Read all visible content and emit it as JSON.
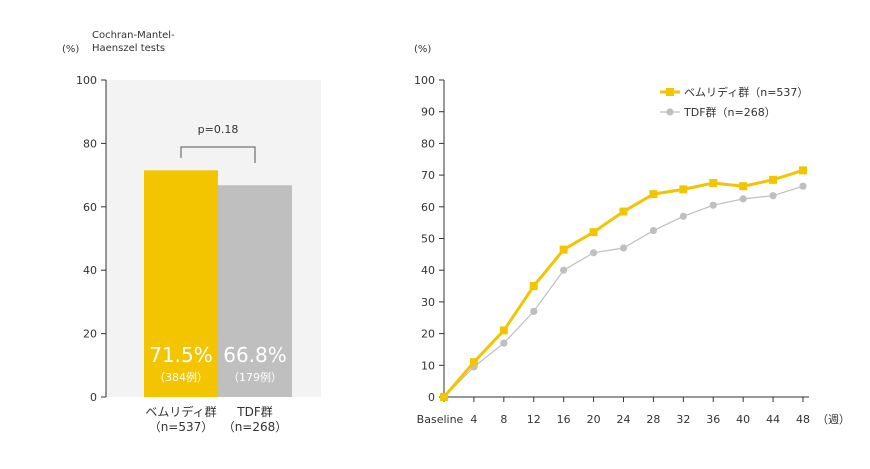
{
  "chart_data": [
    {
      "type": "bar",
      "unit_label": "(%)",
      "note": "Cochran-Mantel-Haenszel tests",
      "ylim": [
        0,
        100
      ],
      "yticks": [
        0,
        20,
        40,
        60,
        80,
        100
      ],
      "pvalue_label": "p=0.18",
      "bars": [
        {
          "value": 71.5,
          "value_label": "71.5%",
          "count_label": "（384例）",
          "category": "ベムリディ群",
          "n_label": "（n=537）",
          "color": "#f2c500"
        },
        {
          "value": 66.8,
          "value_label": "66.8%",
          "count_label": "（179例）",
          "category": "TDF群",
          "n_label": "（n=268）",
          "color": "#bfbfbf"
        }
      ]
    },
    {
      "type": "line",
      "unit_label": "(%)",
      "x_unit_label": "（週）",
      "x": [
        "Baseline",
        "4",
        "8",
        "12",
        "16",
        "20",
        "24",
        "28",
        "32",
        "36",
        "40",
        "44",
        "48"
      ],
      "ylim": [
        0,
        100
      ],
      "yticks": [
        0,
        10,
        20,
        30,
        40,
        50,
        60,
        70,
        80,
        90,
        100
      ],
      "legend_position": "top-right",
      "series": [
        {
          "name": "ベムリディ群（n=537）",
          "color": "#f2c500",
          "marker": "square",
          "values": [
            0,
            11,
            21,
            35,
            46.5,
            52,
            58.5,
            64,
            65.5,
            67.5,
            66.5,
            68.5,
            71.5
          ]
        },
        {
          "name": "TDF群（n=268）",
          "color": "#bfbfbf",
          "marker": "circle",
          "values": [
            0,
            9.5,
            17,
            27,
            40,
            45.5,
            47,
            52.5,
            57,
            60.5,
            62.5,
            63.5,
            66.5
          ]
        }
      ]
    }
  ]
}
